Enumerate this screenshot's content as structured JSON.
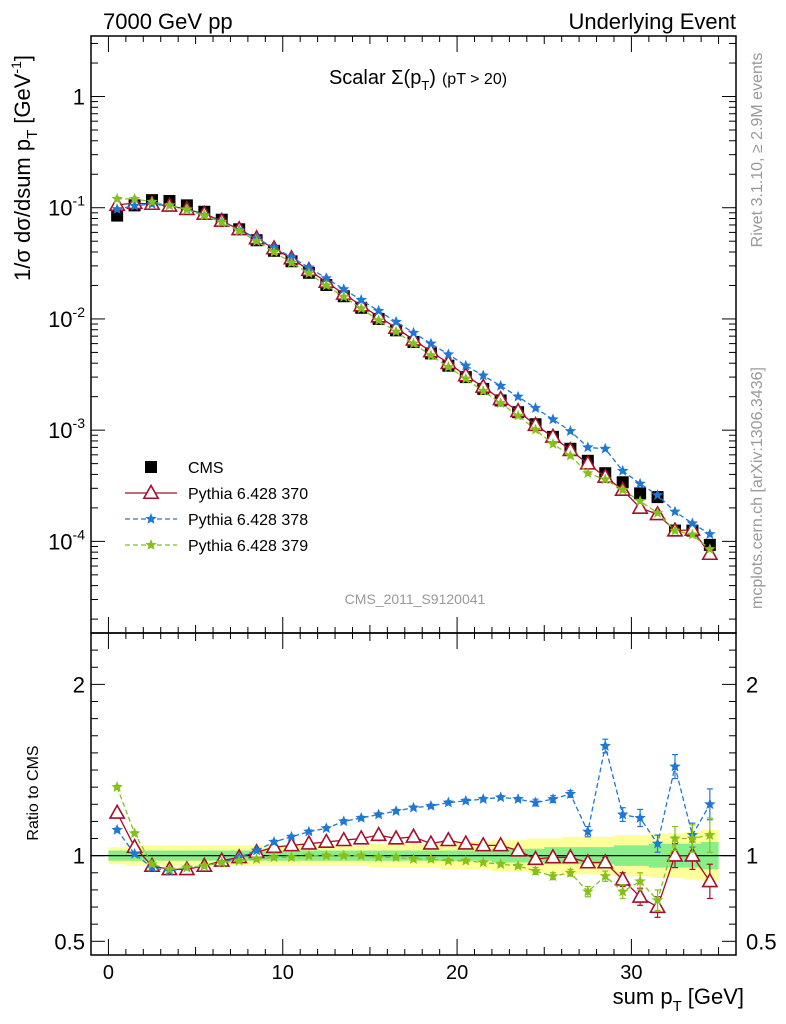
{
  "header": {
    "left": "7000 GeV pp",
    "right": "Underlying Event"
  },
  "side_labels": {
    "rivet": "Rivet 3.1.10, ≥ 2.9M events",
    "mcplots": "mcplots.cern.ch [arXiv:1306.3436]"
  },
  "colors": {
    "cms": "#000000",
    "p370": "#a50f2a",
    "p378": "#1f78d4",
    "p379": "#86c11b",
    "band_outer": "#ffff99",
    "band_inner": "#88ee88",
    "watermark": "#999999"
  },
  "chart_data": [
    {
      "type": "scatter",
      "panel": "main",
      "title": "Scalar Σ(p_T) (pT > 20)",
      "title_parts": {
        "main": "Scalar Σ(p",
        "sub": "T",
        "close": ")",
        "cut": "(pT > 20)"
      },
      "ylabel": "1/σ dσ/dsum p_T [GeV^-1]",
      "ylabel_parts": {
        "main": "1/σ dσ/dsum p",
        "sub": "T",
        "unit": "[GeV",
        "sup": "-1",
        "close": "]"
      },
      "watermark": "CMS_2011_S9120041",
      "y_scale": "log",
      "xlim": [
        -1,
        36
      ],
      "ylim": [
        1.5e-05,
        3.5
      ],
      "y_ticks": [
        {
          "value": 1,
          "base": "1",
          "exp": ""
        },
        {
          "value": 0.1,
          "base": "10",
          "exp": "-1"
        },
        {
          "value": 0.01,
          "base": "10",
          "exp": "-2"
        },
        {
          "value": 0.001,
          "base": "10",
          "exp": "-3"
        },
        {
          "value": 0.0001,
          "base": "10",
          "exp": "-4"
        }
      ],
      "legend_position": "lower-left",
      "x": [
        0.5,
        1.5,
        2.5,
        3.5,
        4.5,
        5.5,
        6.5,
        7.5,
        8.5,
        9.5,
        10.5,
        11.5,
        12.5,
        13.5,
        14.5,
        15.5,
        16.5,
        17.5,
        18.5,
        19.5,
        20.5,
        21.5,
        22.5,
        23.5,
        24.5,
        25.5,
        26.5,
        27.5,
        28.5,
        29.5,
        30.5,
        31.5,
        32.5,
        33.5,
        34.5
      ],
      "series": [
        {
          "name": "CMS",
          "marker": "square",
          "color": "#000000",
          "values": [
            0.085,
            0.105,
            0.117,
            0.115,
            0.105,
            0.092,
            0.078,
            0.064,
            0.051,
            0.041,
            0.033,
            0.026,
            0.0202,
            0.016,
            0.0126,
            0.01,
            0.0079,
            0.0062,
            0.0049,
            0.0038,
            0.003,
            0.00235,
            0.00185,
            0.00145,
            0.00113,
            0.00087,
            0.00068,
            0.00053,
            0.00041,
            0.00034,
            0.00027,
            0.00025,
            0.000125,
            0.000125,
            9.3e-05
          ]
        },
        {
          "name": "Pythia 6.428 370",
          "marker": "triangle",
          "line": "solid",
          "color": "#a50f2a",
          "values": [
            0.106,
            0.11,
            0.108,
            0.104,
            0.097,
            0.088,
            0.076,
            0.064,
            0.053,
            0.043,
            0.035,
            0.0275,
            0.0215,
            0.0168,
            0.0132,
            0.0105,
            0.0083,
            0.0065,
            0.0051,
            0.004,
            0.0031,
            0.00245,
            0.0019,
            0.00148,
            0.00111,
            0.00087,
            0.00066,
            0.0005,
            0.00038,
            0.00029,
            0.0002,
            0.000175,
            0.000125,
            0.000127,
            7.7e-05
          ]
        },
        {
          "name": "Pythia 6.428 378",
          "marker": "star",
          "line": "dashed",
          "color": "#1f78d4",
          "values": [
            0.097,
            0.104,
            0.108,
            0.105,
            0.097,
            0.086,
            0.075,
            0.063,
            0.053,
            0.044,
            0.036,
            0.029,
            0.0232,
            0.0185,
            0.0148,
            0.0118,
            0.0094,
            0.0075,
            0.006,
            0.0048,
            0.0038,
            0.0031,
            0.0025,
            0.002,
            0.00158,
            0.00125,
            0.00098,
            0.0007,
            0.00068,
            0.00043,
            0.00033,
            0.00026,
            0.000185,
            0.000145,
            0.000116
          ]
        },
        {
          "name": "Pythia 6.428 379",
          "marker": "star",
          "line": "dashed",
          "color": "#86c11b",
          "values": [
            0.12,
            0.12,
            0.113,
            0.105,
            0.096,
            0.085,
            0.074,
            0.062,
            0.05,
            0.04,
            0.032,
            0.0257,
            0.02,
            0.0158,
            0.0124,
            0.0097,
            0.0077,
            0.006,
            0.0047,
            0.0037,
            0.0029,
            0.00225,
            0.00175,
            0.00135,
            0.00101,
            0.00075,
            0.00059,
            0.00041,
            0.00036,
            0.00029,
            0.00023,
            0.00018,
            0.000125,
            0.000115,
            8.5e-05
          ]
        }
      ]
    },
    {
      "type": "scatter",
      "panel": "ratio",
      "ylabel": "Ratio to CMS",
      "xlabel": "sum p_T [GeV]",
      "xlabel_parts": {
        "main": "sum p",
        "sub": "T",
        "unit": "[GeV]"
      },
      "xlim": [
        -1,
        36
      ],
      "ylim": [
        0.42,
        2.3
      ],
      "x_ticks": [
        0,
        10,
        20,
        30
      ],
      "y_ticks": [
        {
          "value": 0.5,
          "label": "0.5"
        },
        {
          "value": 1,
          "label": "1"
        },
        {
          "value": 2,
          "label": "2"
        }
      ],
      "x": [
        0.5,
        1.5,
        2.5,
        3.5,
        4.5,
        5.5,
        6.5,
        7.5,
        8.5,
        9.5,
        10.5,
        11.5,
        12.5,
        13.5,
        14.5,
        15.5,
        16.5,
        17.5,
        18.5,
        19.5,
        20.5,
        21.5,
        22.5,
        23.5,
        24.5,
        25.5,
        26.5,
        27.5,
        28.5,
        29.5,
        30.5,
        31.5,
        32.5,
        33.5,
        34.5
      ],
      "band_outer_halfwidth": [
        0.05,
        0.06,
        0.06,
        0.06,
        0.06,
        0.06,
        0.06,
        0.06,
        0.06,
        0.06,
        0.06,
        0.06,
        0.06,
        0.06,
        0.06,
        0.07,
        0.07,
        0.07,
        0.07,
        0.08,
        0.08,
        0.08,
        0.09,
        0.09,
        0.1,
        0.1,
        0.11,
        0.11,
        0.11,
        0.12,
        0.12,
        0.13,
        0.13,
        0.14,
        0.15
      ],
      "band_inner_halfwidth": [
        0.03,
        0.03,
        0.03,
        0.03,
        0.03,
        0.03,
        0.03,
        0.03,
        0.03,
        0.03,
        0.03,
        0.03,
        0.03,
        0.03,
        0.03,
        0.03,
        0.03,
        0.03,
        0.03,
        0.03,
        0.03,
        0.03,
        0.04,
        0.04,
        0.04,
        0.05,
        0.05,
        0.05,
        0.05,
        0.06,
        0.06,
        0.07,
        0.07,
        0.07,
        0.08
      ],
      "series": [
        {
          "name": "Pythia 6.428 370",
          "color": "#a50f2a",
          "values": [
            1.25,
            1.05,
            0.94,
            0.92,
            0.92,
            0.94,
            0.97,
            0.99,
            1.02,
            1.05,
            1.06,
            1.07,
            1.08,
            1.09,
            1.1,
            1.12,
            1.1,
            1.11,
            1.07,
            1.09,
            1.07,
            1.06,
            1.06,
            1.03,
            0.98,
            0.99,
            0.99,
            0.96,
            0.96,
            0.86,
            0.76,
            0.7,
            1.0,
            1.0,
            0.85
          ],
          "errors": [
            0.01,
            0.01,
            0.01,
            0.01,
            0.01,
            0.01,
            0.01,
            0.01,
            0.01,
            0.01,
            0.01,
            0.01,
            0.01,
            0.01,
            0.01,
            0.01,
            0.01,
            0.01,
            0.01,
            0.01,
            0.01,
            0.01,
            0.01,
            0.01,
            0.02,
            0.02,
            0.02,
            0.02,
            0.03,
            0.04,
            0.05,
            0.06,
            0.07,
            0.08,
            0.1
          ]
        },
        {
          "name": "Pythia 6.428 378",
          "color": "#1f78d4",
          "values": [
            1.15,
            1.01,
            0.93,
            0.91,
            0.93,
            0.94,
            0.96,
            0.99,
            1.03,
            1.08,
            1.11,
            1.14,
            1.16,
            1.2,
            1.22,
            1.24,
            1.26,
            1.28,
            1.29,
            1.31,
            1.32,
            1.33,
            1.34,
            1.33,
            1.31,
            1.33,
            1.36,
            1.14,
            1.64,
            1.24,
            1.22,
            1.07,
            1.52,
            1.12,
            1.3
          ],
          "errors": [
            0.01,
            0.01,
            0.01,
            0.01,
            0.01,
            0.01,
            0.01,
            0.01,
            0.01,
            0.01,
            0.01,
            0.01,
            0.01,
            0.01,
            0.01,
            0.01,
            0.01,
            0.01,
            0.01,
            0.01,
            0.01,
            0.01,
            0.01,
            0.01,
            0.02,
            0.02,
            0.02,
            0.03,
            0.04,
            0.04,
            0.05,
            0.05,
            0.07,
            0.07,
            0.09
          ]
        },
        {
          "name": "Pythia 6.428 379",
          "color": "#86c11b",
          "values": [
            1.4,
            1.13,
            0.95,
            0.92,
            0.93,
            0.94,
            0.96,
            0.97,
            0.98,
            0.99,
            0.99,
            1.0,
            1.0,
            1.0,
            1.0,
            0.99,
            0.99,
            0.98,
            0.98,
            0.97,
            0.97,
            0.96,
            0.95,
            0.94,
            0.91,
            0.88,
            0.9,
            0.79,
            0.88,
            0.79,
            0.85,
            0.74,
            1.1,
            1.1,
            1.12
          ],
          "errors": [
            0.01,
            0.01,
            0.01,
            0.01,
            0.01,
            0.01,
            0.01,
            0.01,
            0.01,
            0.01,
            0.01,
            0.01,
            0.01,
            0.01,
            0.01,
            0.01,
            0.01,
            0.01,
            0.01,
            0.01,
            0.01,
            0.01,
            0.01,
            0.01,
            0.02,
            0.02,
            0.02,
            0.03,
            0.03,
            0.04,
            0.05,
            0.06,
            0.07,
            0.08,
            0.1
          ]
        }
      ]
    }
  ]
}
